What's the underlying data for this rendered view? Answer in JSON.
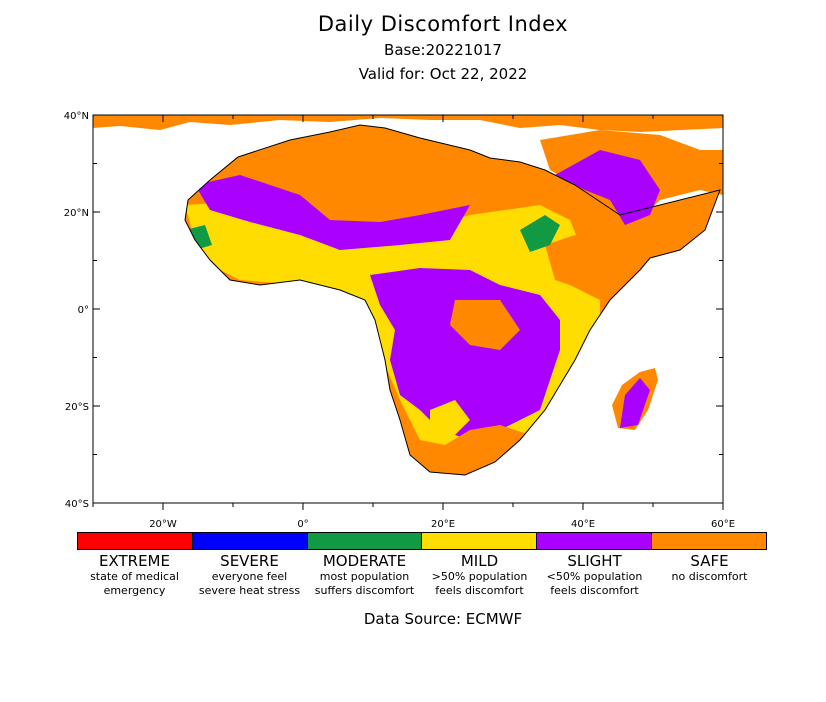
{
  "header": {
    "title": "Daily Discomfort Index",
    "base": "Base:20221017",
    "valid": "Valid for: Oct 22, 2022"
  },
  "map": {
    "lat_labels": [
      "40°N",
      "20°N",
      "0°",
      "20°S",
      "40°S"
    ],
    "lon_labels": [
      "20°W",
      "0°",
      "20°E",
      "40°E",
      "60°E"
    ],
    "extent": {
      "lon": [
        -30,
        60
      ],
      "lat": [
        -40,
        40
      ]
    },
    "colors": {
      "safe": "#ff8800",
      "slight": "#aa00ff",
      "mild": "#ffdd00",
      "moderate": "#119944",
      "severe": "#0000ff",
      "extreme": "#ff0000",
      "ocean": "#ffffff",
      "border": "#000000"
    }
  },
  "legend": [
    {
      "name": "EXTREME",
      "desc1": "state of medical",
      "desc2": "emergency",
      "color": "#ff0000"
    },
    {
      "name": "SEVERE",
      "desc1": "everyone feel",
      "desc2": "severe heat stress",
      "color": "#0000ff"
    },
    {
      "name": "MODERATE",
      "desc1": "most population",
      "desc2": "suffers discomfort",
      "color": "#119944"
    },
    {
      "name": "MILD",
      "desc1": ">50% population",
      "desc2": "feels discomfort",
      "color": "#ffdd00"
    },
    {
      "name": "SLIGHT",
      "desc1": "<50% population",
      "desc2": "feels discomfort",
      "color": "#aa00ff"
    },
    {
      "name": "SAFE",
      "desc1": "no discomfort",
      "desc2": "",
      "color": "#ff8800"
    }
  ],
  "footer": {
    "source": "Data Source: ECMWF"
  }
}
